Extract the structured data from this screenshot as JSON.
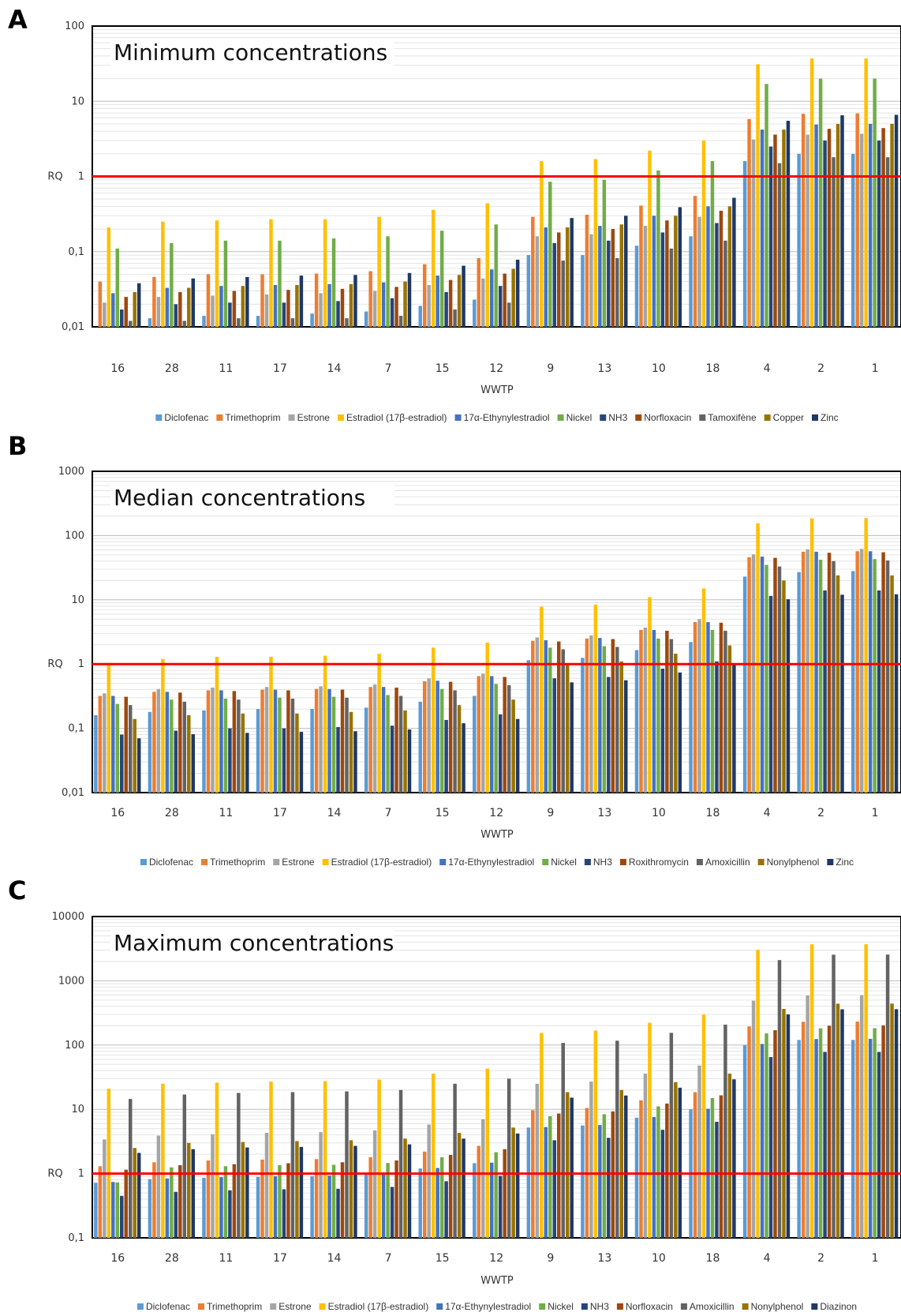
{
  "chart_data": [
    {
      "panel": "A",
      "type": "bar",
      "title": "Minimum concentrations",
      "xlabel": "WWTP",
      "ylabel": "RQ",
      "yscale": "log",
      "ylim": [
        0.01,
        100
      ],
      "yticks": [
        "0,01",
        "0,1",
        "1",
        "10",
        "100"
      ],
      "reference_line": 1,
      "categories": [
        "16",
        "28",
        "11",
        "17",
        "14",
        "7",
        "15",
        "12",
        "9",
        "13",
        "10",
        "18",
        "4",
        "2",
        "1"
      ],
      "series": [
        {
          "name": "Diclofenac",
          "color": "#5B9BD5",
          "values": [
            0.01,
            0.013,
            0.014,
            0.014,
            0.015,
            0.016,
            0.019,
            0.023,
            0.09,
            0.09,
            0.12,
            0.16,
            1.6,
            2.0,
            2.0
          ]
        },
        {
          "name": "Trimethoprim",
          "color": "#ED7D31",
          "values": [
            0.04,
            0.046,
            0.05,
            0.05,
            0.051,
            0.055,
            0.068,
            0.082,
            0.29,
            0.31,
            0.41,
            0.55,
            5.8,
            6.8,
            6.9
          ]
        },
        {
          "name": "Estrone",
          "color": "#A5A5A5",
          "values": [
            0.021,
            0.025,
            0.026,
            0.027,
            0.028,
            0.03,
            0.036,
            0.044,
            0.16,
            0.17,
            0.22,
            0.29,
            3.1,
            3.6,
            3.7
          ]
        },
        {
          "name": "Estradiol (17β-estradiol)",
          "color": "#FFC000",
          "values": [
            0.21,
            0.25,
            0.26,
            0.27,
            0.27,
            0.29,
            0.36,
            0.44,
            1.6,
            1.7,
            2.2,
            3.0,
            31,
            37,
            37
          ]
        },
        {
          "name": "17α-Ethynylestradiol",
          "color": "#4472C4",
          "values": [
            0.028,
            0.033,
            0.035,
            0.036,
            0.037,
            0.039,
            0.048,
            0.058,
            0.21,
            0.22,
            0.3,
            0.4,
            4.2,
            4.9,
            5.0
          ]
        },
        {
          "name": "Nickel",
          "color": "#70AD47",
          "values": [
            0.11,
            0.13,
            0.14,
            0.14,
            0.15,
            0.16,
            0.19,
            0.23,
            0.85,
            0.9,
            1.2,
            1.6,
            17,
            20,
            20
          ]
        },
        {
          "name": "NH3",
          "color": "#264478",
          "values": [
            0.017,
            0.02,
            0.021,
            0.021,
            0.022,
            0.024,
            0.029,
            0.035,
            0.13,
            0.14,
            0.18,
            0.24,
            2.5,
            3.0,
            3.0
          ]
        },
        {
          "name": "Norfloxacin",
          "color": "#9E480E",
          "values": [
            0.025,
            0.029,
            0.03,
            0.031,
            0.032,
            0.034,
            0.042,
            0.051,
            0.18,
            0.2,
            0.26,
            0.35,
            3.6,
            4.3,
            4.4
          ]
        },
        {
          "name": "Tamoxifène",
          "color": "#636363",
          "values": [
            0.012,
            0.012,
            0.013,
            0.013,
            0.013,
            0.014,
            0.017,
            0.021,
            0.076,
            0.082,
            0.11,
            0.14,
            1.5,
            1.8,
            1.8
          ]
        },
        {
          "name": "Copper",
          "color": "#997300",
          "values": [
            0.029,
            0.033,
            0.035,
            0.036,
            0.037,
            0.04,
            0.049,
            0.059,
            0.21,
            0.23,
            0.3,
            0.4,
            4.2,
            5.0,
            5.0
          ]
        },
        {
          "name": "Zinc",
          "color": "#1F3864",
          "values": [
            0.038,
            0.044,
            0.046,
            0.048,
            0.049,
            0.052,
            0.065,
            0.078,
            0.28,
            0.3,
            0.39,
            0.52,
            5.5,
            6.5,
            6.6
          ]
        }
      ]
    },
    {
      "panel": "B",
      "type": "bar",
      "title": "Median concentrations",
      "xlabel": "WWTP",
      "ylabel": "RQ",
      "yscale": "log",
      "ylim": [
        0.01,
        1000
      ],
      "yticks": [
        "0,01",
        "0,1",
        "1",
        "10",
        "100",
        "1000"
      ],
      "reference_line": 1,
      "categories": [
        "16",
        "28",
        "11",
        "17",
        "14",
        "7",
        "15",
        "12",
        "9",
        "13",
        "10",
        "18",
        "4",
        "2",
        "1"
      ],
      "series": [
        {
          "name": "Diclofenac",
          "color": "#5B9BD5",
          "values": [
            0.16,
            0.18,
            0.19,
            0.2,
            0.2,
            0.21,
            0.26,
            0.32,
            1.15,
            1.25,
            1.65,
            2.2,
            23,
            27,
            28
          ]
        },
        {
          "name": "Trimethoprim",
          "color": "#ED7D31",
          "values": [
            0.32,
            0.37,
            0.39,
            0.4,
            0.41,
            0.44,
            0.54,
            0.65,
            2.3,
            2.5,
            3.4,
            4.5,
            46,
            56,
            57
          ]
        },
        {
          "name": "Estrone",
          "color": "#A5A5A5",
          "values": [
            0.35,
            0.41,
            0.43,
            0.44,
            0.45,
            0.48,
            0.6,
            0.71,
            2.6,
            2.8,
            3.7,
            5.0,
            51,
            61,
            62
          ]
        },
        {
          "name": "Estradiol (17β-estradiol)",
          "color": "#FFC000",
          "values": [
            1.0,
            1.2,
            1.3,
            1.3,
            1.35,
            1.45,
            1.8,
            2.15,
            7.8,
            8.4,
            11,
            15,
            155,
            185,
            187
          ]
        },
        {
          "name": "17α-Ethynylestradiol",
          "color": "#4472C4",
          "values": [
            0.32,
            0.37,
            0.39,
            0.4,
            0.41,
            0.44,
            0.55,
            0.65,
            2.35,
            2.55,
            3.4,
            4.5,
            47,
            56,
            57
          ]
        },
        {
          "name": "Nickel",
          "color": "#70AD47",
          "values": [
            0.24,
            0.28,
            0.29,
            0.3,
            0.31,
            0.33,
            0.41,
            0.49,
            1.8,
            1.9,
            2.5,
            3.4,
            35,
            42,
            43
          ]
        },
        {
          "name": "NH3",
          "color": "#264478",
          "values": [
            0.08,
            0.092,
            0.1,
            0.1,
            0.105,
            0.11,
            0.135,
            0.165,
            0.6,
            0.63,
            0.85,
            1.1,
            11.5,
            14,
            14
          ]
        },
        {
          "name": "Roxithromycin",
          "color": "#9E480E",
          "values": [
            0.31,
            0.36,
            0.38,
            0.39,
            0.4,
            0.43,
            0.53,
            0.63,
            2.25,
            2.45,
            3.3,
            4.4,
            45,
            54,
            55
          ]
        },
        {
          "name": "Amoxicillin",
          "color": "#636363",
          "values": [
            0.23,
            0.26,
            0.28,
            0.29,
            0.3,
            0.32,
            0.39,
            0.47,
            1.7,
            1.85,
            2.45,
            3.3,
            33,
            40,
            41
          ]
        },
        {
          "name": "Nonylphenol",
          "color": "#997300",
          "values": [
            0.14,
            0.16,
            0.17,
            0.17,
            0.18,
            0.19,
            0.23,
            0.28,
            1.0,
            1.1,
            1.45,
            1.95,
            20,
            24,
            24
          ]
        },
        {
          "name": "Zinc",
          "color": "#1F3864",
          "values": [
            0.07,
            0.081,
            0.085,
            0.088,
            0.09,
            0.096,
            0.12,
            0.14,
            0.52,
            0.56,
            0.74,
            0.99,
            10.2,
            12,
            12.2
          ]
        }
      ]
    },
    {
      "panel": "C",
      "type": "bar",
      "title": "Maximum concentrations",
      "xlabel": "WWTP",
      "ylabel": "RQ",
      "yscale": "log",
      "ylim": [
        0.1,
        10000
      ],
      "yticks": [
        "0,1",
        "1",
        "10",
        "100",
        "1000",
        "10000"
      ],
      "reference_line": 1,
      "categories": [
        "16",
        "28",
        "11",
        "17",
        "14",
        "7",
        "15",
        "12",
        "9",
        "13",
        "10",
        "18",
        "4",
        "2",
        "1"
      ],
      "series": [
        {
          "name": "Diclofenac",
          "color": "#5B9BD5",
          "values": [
            0.72,
            0.82,
            0.86,
            0.89,
            0.91,
            0.97,
            1.2,
            1.45,
            5.2,
            5.6,
            7.4,
            10,
            100,
            120,
            120
          ]
        },
        {
          "name": "Trimethoprim",
          "color": "#ED7D31",
          "values": [
            1.3,
            1.5,
            1.6,
            1.65,
            1.68,
            1.8,
            2.2,
            2.7,
            9.7,
            10.5,
            13.8,
            18.5,
            195,
            230,
            232
          ]
        },
        {
          "name": "Estrone",
          "color": "#A5A5A5",
          "values": [
            3.4,
            3.9,
            4.1,
            4.3,
            4.4,
            4.7,
            5.8,
            7.0,
            25,
            27,
            36,
            48,
            490,
            590,
            595
          ]
        },
        {
          "name": "Estradiol (17β-estradiol)",
          "color": "#FFC000",
          "values": [
            21,
            25,
            26,
            27,
            27.5,
            29,
            36,
            43,
            155,
            168,
            222,
            298,
            3050,
            3700,
            3700
          ]
        },
        {
          "name": "17α-Ethynylestradiol",
          "color": "#4472C4",
          "values": [
            0.74,
            0.84,
            0.88,
            0.91,
            0.93,
            0.99,
            1.22,
            1.48,
            5.3,
            5.7,
            7.6,
            10.2,
            104,
            124,
            125
          ]
        },
        {
          "name": "Nickel",
          "color": "#70AD47",
          "values": [
            0.73,
            1.25,
            1.3,
            1.35,
            1.37,
            1.46,
            1.8,
            2.15,
            7.8,
            8.4,
            11.1,
            15,
            152,
            182,
            183
          ]
        },
        {
          "name": "NH3",
          "color": "#264478",
          "values": [
            0.45,
            0.52,
            0.55,
            0.57,
            0.58,
            0.62,
            0.76,
            0.92,
            3.3,
            3.6,
            4.8,
            6.4,
            65,
            78,
            78
          ]
        },
        {
          "name": "Norfloxacin",
          "color": "#9E480E",
          "values": [
            1.15,
            1.35,
            1.4,
            1.45,
            1.5,
            1.6,
            1.95,
            2.4,
            8.6,
            9.3,
            12.3,
            16.5,
            170,
            200,
            202
          ]
        },
        {
          "name": "Amoxicillin",
          "color": "#636363",
          "values": [
            14.5,
            17,
            18,
            18.5,
            19,
            20,
            25,
            30,
            108,
            117,
            155,
            208,
            2100,
            2550,
            2560
          ]
        },
        {
          "name": "Nonylphenol",
          "color": "#997300",
          "values": [
            2.5,
            3.0,
            3.1,
            3.2,
            3.3,
            3.5,
            4.3,
            5.2,
            18.5,
            20,
            26.5,
            36,
            365,
            440,
            442
          ]
        },
        {
          "name": "Diazinon",
          "color": "#1F3864",
          "values": [
            2.1,
            2.4,
            2.55,
            2.6,
            2.7,
            2.85,
            3.5,
            4.2,
            15.2,
            16.4,
            21.7,
            29.3,
            300,
            360,
            362
          ]
        }
      ]
    }
  ]
}
